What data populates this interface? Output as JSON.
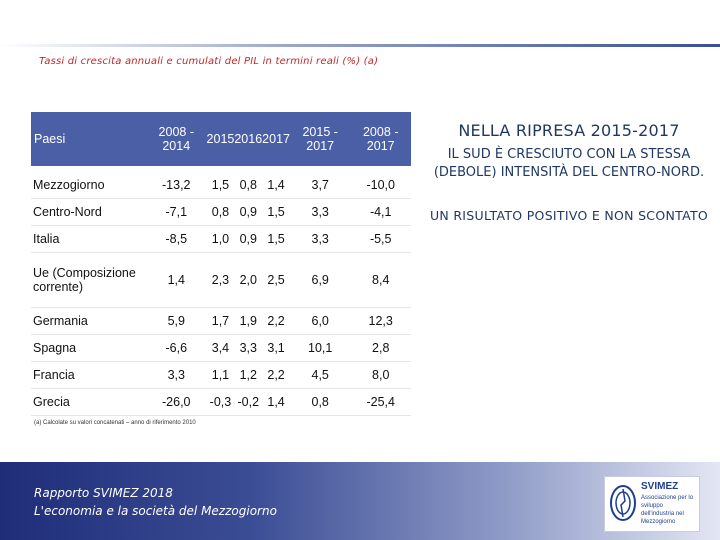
{
  "subtitle": "Tassi di crescita annuali e cumulati del PIL in termini reali (%) (a)",
  "table": {
    "headers": [
      "Paesi",
      "2008 - 2014",
      "2015",
      "2016",
      "2017",
      "2015 - 2017",
      "2008 - 2017"
    ],
    "rows": [
      {
        "name": "Mezzogiorno",
        "values": [
          "-13,2",
          "1,5",
          "0,8",
          "1,4",
          "3,7",
          "-10,0"
        ]
      },
      {
        "name": "Centro-Nord",
        "values": [
          "-7,1",
          "0,8",
          "0,9",
          "1,5",
          "3,3",
          "-4,1"
        ]
      },
      {
        "name": "Italia",
        "values": [
          "-8,5",
          "1,0",
          "0,9",
          "1,5",
          "3,3",
          "-5,5"
        ]
      },
      {
        "name": "Ue (Composizione corrente)",
        "values": [
          "1,4",
          "2,3",
          "2,0",
          "2,5",
          "6,9",
          "8,4"
        ]
      },
      {
        "name": "Germania",
        "values": [
          "5,9",
          "1,7",
          "1,9",
          "2,2",
          "6,0",
          "12,3"
        ]
      },
      {
        "name": "Spagna",
        "values": [
          "-6,6",
          "3,4",
          "3,3",
          "3,1",
          "10,1",
          "2,8"
        ]
      },
      {
        "name": "Francia",
        "values": [
          "3,3",
          "1,1",
          "1,2",
          "2,2",
          "4,5",
          "8,0"
        ]
      },
      {
        "name": "Grecia",
        "values": [
          "-26,0",
          "-0,3",
          "-0,2",
          "1,4",
          "0,8",
          "-25,4"
        ]
      }
    ]
  },
  "footnote": "(a) Calcolate su valori concatenati – anno di riferimento 2010",
  "side": {
    "heading": "NELLA RIPRESA 2015-2017",
    "line2": "IL SUD È CRESCIUTO CON LA STESSA (DEBOLE) INTENSITÀ DEL CENTRO-NORD.",
    "line3": "UN RISULTATO POSITIVO E NON SCONTATO"
  },
  "footer": {
    "line1": "Rapporto SVIMEZ 2018",
    "line2": "L'economia e la società del Mezzogiorno"
  },
  "logo": {
    "brand": "SVIMEZ",
    "tagline": "Associazione per lo sviluppo dell'industria nel Mezzogiorno"
  },
  "colors": {
    "header_bg": "#4a5fa5",
    "subtitle": "#c0282d",
    "side_text": "#1f3864"
  }
}
